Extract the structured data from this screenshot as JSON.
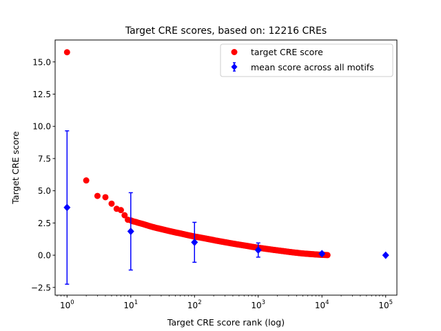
{
  "chart_data": {
    "type": "scatter",
    "title": "Target CRE scores, based on: 12216 CREs",
    "xlabel": "Target CRE score rank (log)",
    "ylabel": "Target CRE score",
    "xscale": "log",
    "xlim": [
      0.65,
      150000
    ],
    "ylim": [
      -3.1,
      16.7
    ],
    "yticks": [
      -2.5,
      0.0,
      2.5,
      5.0,
      7.5,
      10.0,
      12.5,
      15.0
    ],
    "ytick_labels": [
      "−2.5",
      "0.0",
      "2.5",
      "5.0",
      "7.5",
      "10.0",
      "12.5",
      "15.0"
    ],
    "xticks": [
      1,
      10,
      100,
      1000,
      10000,
      100000
    ],
    "xtick_labels": [
      {
        "base": "10",
        "exp": "0"
      },
      {
        "base": "10",
        "exp": "1"
      },
      {
        "base": "10",
        "exp": "2"
      },
      {
        "base": "10",
        "exp": "3"
      },
      {
        "base": "10",
        "exp": "4"
      },
      {
        "base": "10",
        "exp": "5"
      }
    ],
    "grid": false,
    "legend_position": "top-right",
    "series": [
      {
        "name": "target CRE score",
        "color": "#ff0000",
        "marker": "circle",
        "points": [
          [
            1,
            15.75
          ],
          [
            2,
            5.8
          ],
          [
            3,
            4.6
          ],
          [
            4,
            4.5
          ],
          [
            5,
            4.0
          ],
          [
            6,
            3.6
          ],
          [
            7,
            3.5
          ],
          [
            8,
            3.1
          ],
          [
            9,
            2.75
          ],
          [
            10,
            2.7
          ],
          [
            11,
            2.62
          ],
          [
            12,
            2.58
          ],
          [
            13,
            2.52
          ],
          [
            14,
            2.48
          ],
          [
            15,
            2.44
          ],
          [
            16,
            2.4
          ],
          [
            17,
            2.36
          ],
          [
            20,
            2.25
          ],
          [
            25,
            2.12
          ],
          [
            30,
            2.03
          ],
          [
            40,
            1.88
          ],
          [
            50,
            1.77
          ],
          [
            60,
            1.69
          ],
          [
            80,
            1.55
          ],
          [
            100,
            1.45
          ],
          [
            130,
            1.35
          ],
          [
            170,
            1.24
          ],
          [
            220,
            1.13
          ],
          [
            300,
            1.01
          ],
          [
            400,
            0.9
          ],
          [
            500,
            0.82
          ],
          [
            650,
            0.73
          ],
          [
            800,
            0.65
          ],
          [
            1000,
            0.58
          ],
          [
            1300,
            0.5
          ],
          [
            1700,
            0.42
          ],
          [
            2200,
            0.35
          ],
          [
            2800,
            0.28
          ],
          [
            3500,
            0.22
          ],
          [
            4500,
            0.16
          ],
          [
            5500,
            0.12
          ],
          [
            7000,
            0.08
          ],
          [
            8500,
            0.05
          ],
          [
            10000,
            0.03
          ],
          [
            11200,
            0.02
          ],
          [
            12216,
            0.01
          ]
        ]
      },
      {
        "name": "mean score across all motifs",
        "color": "#0000ff",
        "marker": "diamond",
        "errorbar": true,
        "points": [
          {
            "x": 1,
            "y": 3.7,
            "err": 5.95
          },
          {
            "x": 10,
            "y": 1.85,
            "err": 3.0
          },
          {
            "x": 100,
            "y": 1.0,
            "err": 1.55
          },
          {
            "x": 1000,
            "y": 0.4,
            "err": 0.55
          },
          {
            "x": 10000,
            "y": 0.12,
            "err": 0.12
          },
          {
            "x": 100000,
            "y": 0.0,
            "err": 0.0
          }
        ]
      }
    ]
  }
}
